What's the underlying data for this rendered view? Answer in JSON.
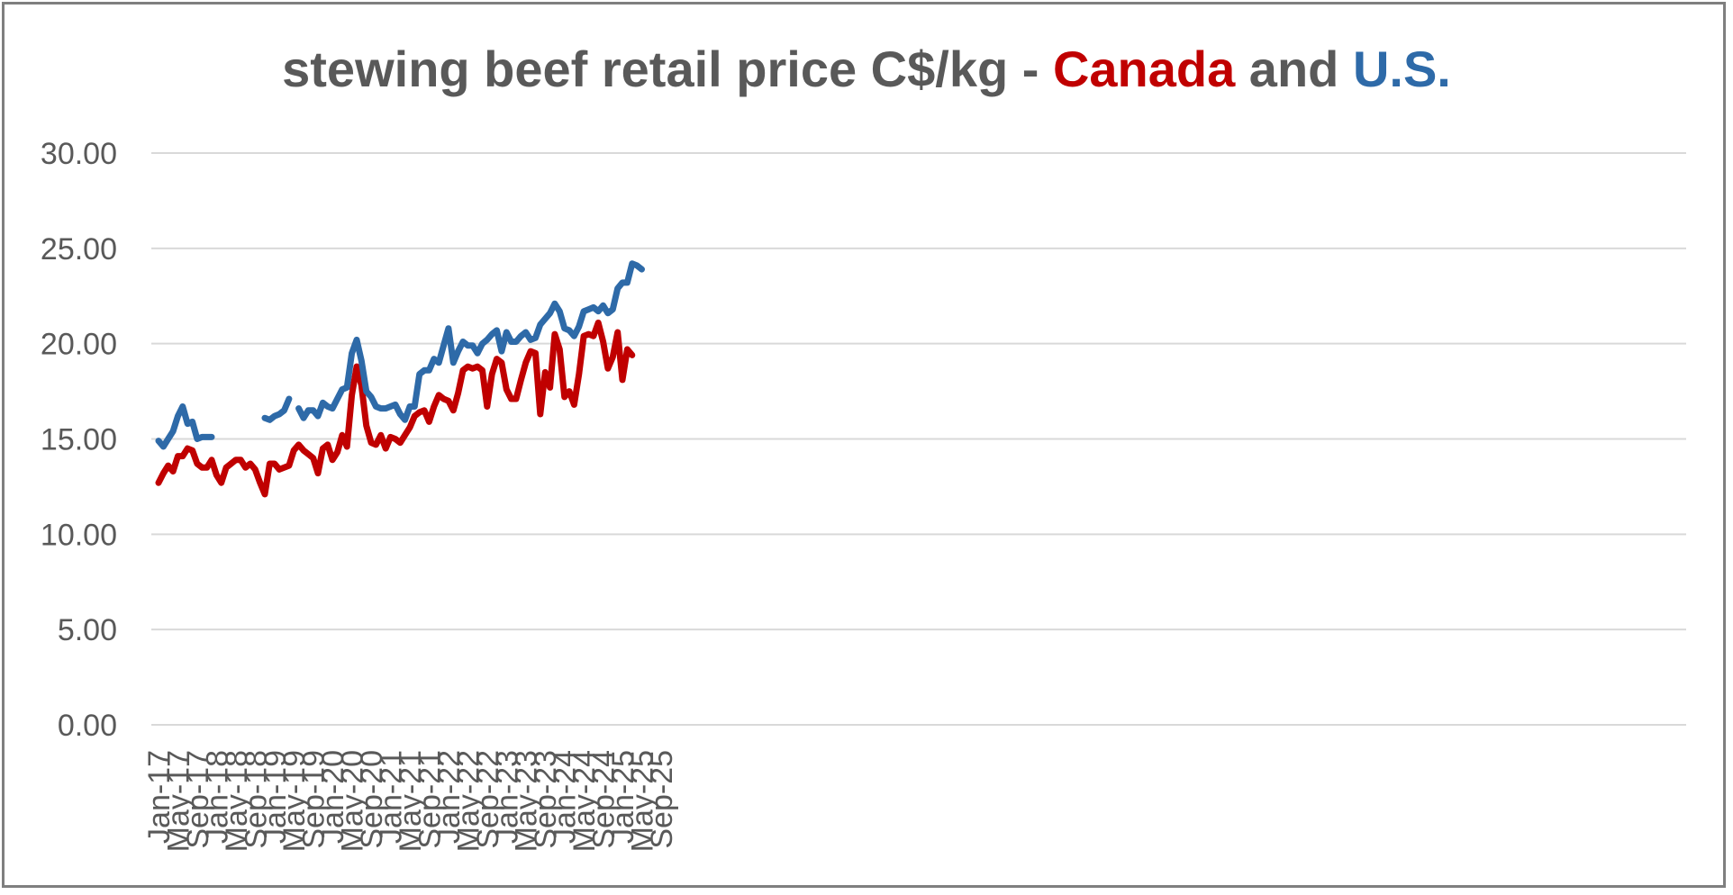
{
  "title": {
    "part1": "stewing beef retail price C$/kg - ",
    "canada": "Canada",
    "mid": " and ",
    "us": "U.S."
  },
  "colors": {
    "canada": "#c00000",
    "us": "#2e6aa8",
    "text": "#595959",
    "grid": "#d9d9d9"
  },
  "chart_data": {
    "type": "line",
    "ylim": [
      0,
      30
    ],
    "yticks": [
      "0.00",
      "5.00",
      "10.00",
      "15.00",
      "20.00",
      "25.00",
      "30.00"
    ],
    "xtick_labels": [
      "Jan-17",
      "May-17",
      "Sep-17",
      "Jan-18",
      "May-18",
      "Sep-18",
      "Jan-19",
      "May-19",
      "Sep-19",
      "Jan-20",
      "May-20",
      "Sep-20",
      "Jan-21",
      "May-21",
      "Sep-21",
      "Jan-22",
      "May-22",
      "Sep-22",
      "Jan-23",
      "May-23",
      "Sep-23",
      "Jan-24",
      "May-24",
      "Sep-24",
      "Jan-25",
      "May-25",
      "Sep-25"
    ],
    "xrange": [
      "Jan-17",
      "Dec-25"
    ],
    "series": [
      {
        "name": "Canada",
        "color": "#c00000",
        "start": "Jan-17",
        "values": [
          12.7,
          13.2,
          13.6,
          13.3,
          14.1,
          14.1,
          14.5,
          14.4,
          13.7,
          13.5,
          13.5,
          13.9,
          13.1,
          12.7,
          13.5,
          13.7,
          13.9,
          13.9,
          13.5,
          13.7,
          13.4,
          12.7,
          12.1,
          13.7,
          13.7,
          13.4,
          13.5,
          13.6,
          14.4,
          14.7,
          14.4,
          14.2,
          14.0,
          13.2,
          14.5,
          14.7,
          13.9,
          14.3,
          15.2,
          14.6,
          17.3,
          18.8,
          17.8,
          15.7,
          14.8,
          14.7,
          15.2,
          14.5,
          15.1,
          15.0,
          14.8,
          15.2,
          15.6,
          16.2,
          16.4,
          16.5,
          15.9,
          16.7,
          17.3,
          17.1,
          17.0,
          16.5,
          17.4,
          18.6,
          18.8,
          18.7,
          18.8,
          18.6,
          16.7,
          18.4,
          19.2,
          19.0,
          17.6,
          17.1,
          17.1,
          18.1,
          19.0,
          19.6,
          19.5,
          16.3,
          18.5,
          17.7,
          20.5,
          19.7,
          17.2,
          17.5,
          16.8,
          18.4,
          20.4,
          20.5,
          20.4,
          21.1,
          20.1,
          18.7,
          19.3,
          20.6,
          18.1,
          19.7,
          19.4
        ]
      },
      {
        "name": "U.S.",
        "color": "#2e6aa8",
        "start": "Jan-17",
        "values": [
          14.9,
          14.6,
          15.0,
          15.4,
          16.2,
          16.7,
          15.8,
          15.9,
          15.0,
          15.1,
          15.1,
          15.1,
          null,
          null,
          null,
          null,
          null,
          null,
          null,
          null,
          null,
          null,
          16.1,
          16.0,
          16.2,
          16.3,
          16.5,
          17.1,
          null,
          16.6,
          16.1,
          16.5,
          16.5,
          16.2,
          16.9,
          16.7,
          16.6,
          17.1,
          17.6,
          17.7,
          19.5,
          20.2,
          19.1,
          17.5,
          17.2,
          16.7,
          16.6,
          16.6,
          16.7,
          16.8,
          16.3,
          16.0,
          16.7,
          16.7,
          18.4,
          18.6,
          18.6,
          19.2,
          19.0,
          19.9,
          20.8,
          19.0,
          19.6,
          20.1,
          19.9,
          19.9,
          19.5,
          20.0,
          20.2,
          20.5,
          20.7,
          19.6,
          20.6,
          20.1,
          20.1,
          20.4,
          20.6,
          20.2,
          20.3,
          21.0,
          21.3,
          21.6,
          22.1,
          21.7,
          20.8,
          20.7,
          20.4,
          20.9,
          21.7,
          21.8,
          21.9,
          21.7,
          22.0,
          21.6,
          21.8,
          22.9,
          23.2,
          23.2,
          24.2,
          24.1,
          23.9
        ]
      }
    ]
  }
}
